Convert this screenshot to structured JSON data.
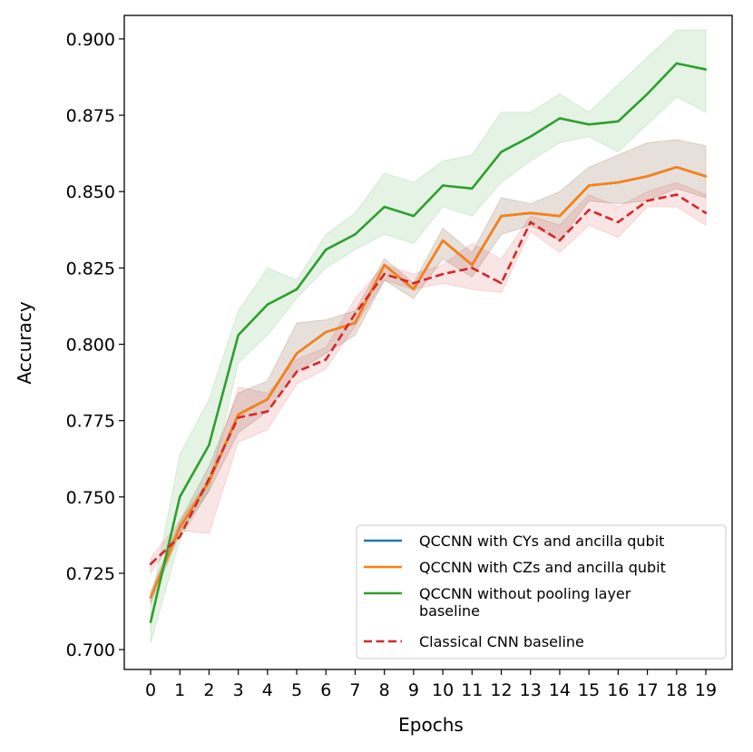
{
  "chart_data": {
    "type": "line",
    "title": "",
    "xlabel": "Epochs",
    "ylabel": "Accuracy",
    "xlim": [
      -0.9,
      19.9
    ],
    "ylim": [
      0.6935,
      0.9077
    ],
    "x": [
      0,
      1,
      2,
      3,
      4,
      5,
      6,
      7,
      8,
      9,
      10,
      11,
      12,
      13,
      14,
      15,
      16,
      17,
      18,
      19
    ],
    "x_ticks": [
      "0",
      "1",
      "2",
      "3",
      "4",
      "5",
      "6",
      "7",
      "8",
      "9",
      "10",
      "11",
      "12",
      "13",
      "14",
      "15",
      "16",
      "17",
      "18",
      "19"
    ],
    "y_ticks": [
      "0.700",
      "0.725",
      "0.750",
      "0.775",
      "0.800",
      "0.825",
      "0.850",
      "0.875",
      "0.900"
    ],
    "y_tick_values": [
      0.7,
      0.725,
      0.75,
      0.775,
      0.8,
      0.825,
      0.85,
      0.875,
      0.9
    ],
    "legend_position": "lower-right",
    "series": [
      {
        "name": "QCCNN with CYs and ancilla qubit",
        "color": "#1f77b4",
        "dash": false,
        "values": [
          0.717,
          0.74,
          0.755,
          0.777,
          0.782,
          0.797,
          0.804,
          0.807,
          0.826,
          0.818,
          0.834,
          0.826,
          0.842,
          0.843,
          0.842,
          0.852,
          0.853,
          0.855,
          0.858,
          0.855
        ],
        "upper": [
          0.719,
          0.742,
          0.76,
          0.784,
          0.788,
          0.807,
          0.808,
          0.811,
          0.828,
          0.82,
          0.838,
          0.83,
          0.848,
          0.846,
          0.85,
          0.858,
          0.862,
          0.866,
          0.867,
          0.865
        ],
        "lower": [
          0.715,
          0.738,
          0.752,
          0.771,
          0.778,
          0.791,
          0.797,
          0.803,
          0.821,
          0.815,
          0.828,
          0.822,
          0.836,
          0.839,
          0.834,
          0.847,
          0.846,
          0.847,
          0.851,
          0.848
        ]
      },
      {
        "name": "QCCNN with CZs and ancilla qubit",
        "color": "#ff7f0e",
        "dash": false,
        "values": [
          0.717,
          0.74,
          0.755,
          0.777,
          0.782,
          0.797,
          0.804,
          0.807,
          0.826,
          0.818,
          0.834,
          0.826,
          0.842,
          0.843,
          0.842,
          0.852,
          0.853,
          0.855,
          0.858,
          0.855
        ],
        "upper": [
          0.719,
          0.742,
          0.76,
          0.784,
          0.788,
          0.807,
          0.808,
          0.811,
          0.828,
          0.82,
          0.838,
          0.83,
          0.848,
          0.846,
          0.85,
          0.858,
          0.862,
          0.866,
          0.867,
          0.865
        ],
        "lower": [
          0.715,
          0.738,
          0.752,
          0.771,
          0.778,
          0.791,
          0.797,
          0.803,
          0.821,
          0.815,
          0.828,
          0.822,
          0.836,
          0.839,
          0.834,
          0.847,
          0.846,
          0.847,
          0.851,
          0.848
        ]
      },
      {
        "name": "QCCNN without pooling layer baseline",
        "name_lines": [
          "QCCNN without pooling layer",
          "baseline"
        ],
        "color": "#2ca02c",
        "dash": false,
        "values": [
          0.709,
          0.75,
          0.767,
          0.803,
          0.813,
          0.818,
          0.831,
          0.836,
          0.845,
          0.842,
          0.852,
          0.851,
          0.863,
          0.868,
          0.874,
          0.872,
          0.873,
          0.882,
          0.892,
          0.89
        ],
        "upper": [
          0.715,
          0.764,
          0.782,
          0.811,
          0.825,
          0.821,
          0.836,
          0.843,
          0.856,
          0.853,
          0.86,
          0.862,
          0.876,
          0.876,
          0.882,
          0.876,
          0.885,
          0.894,
          0.903,
          0.903
        ],
        "lower": [
          0.702,
          0.736,
          0.752,
          0.794,
          0.803,
          0.815,
          0.825,
          0.831,
          0.836,
          0.833,
          0.845,
          0.842,
          0.853,
          0.86,
          0.866,
          0.868,
          0.863,
          0.872,
          0.881,
          0.876
        ]
      },
      {
        "name": "Classical CNN baseline",
        "color": "#d62728",
        "dash": true,
        "values": [
          0.728,
          0.737,
          0.756,
          0.776,
          0.778,
          0.791,
          0.795,
          0.81,
          0.823,
          0.82,
          0.823,
          0.825,
          0.82,
          0.84,
          0.834,
          0.844,
          0.84,
          0.847,
          0.849,
          0.843
        ],
        "upper": [
          0.73,
          0.742,
          0.756,
          0.786,
          0.784,
          0.795,
          0.799,
          0.815,
          0.826,
          0.823,
          0.826,
          0.833,
          0.828,
          0.842,
          0.839,
          0.849,
          0.845,
          0.85,
          0.853,
          0.849
        ],
        "lower": [
          0.725,
          0.739,
          0.738,
          0.768,
          0.772,
          0.787,
          0.792,
          0.806,
          0.821,
          0.818,
          0.82,
          0.818,
          0.817,
          0.837,
          0.83,
          0.839,
          0.835,
          0.845,
          0.845,
          0.839
        ]
      }
    ]
  }
}
